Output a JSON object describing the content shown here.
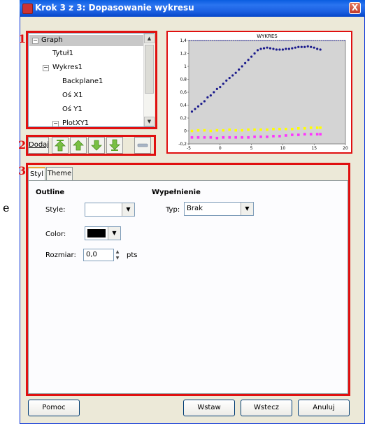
{
  "window": {
    "title": "Krok 3 z 3: Dopasowanie wykresu",
    "close": "X"
  },
  "callouts": [
    "1",
    "2",
    "3"
  ],
  "left_margin_text": "e",
  "tree": {
    "items": [
      {
        "label": "Graph",
        "expander": "−"
      },
      {
        "label": "Tytuł1"
      },
      {
        "label": "Wykres1",
        "expander": "−"
      },
      {
        "label": "Backplane1"
      },
      {
        "label": "Oś X1"
      },
      {
        "label": "Oś Y1"
      },
      {
        "label": "PlotXY1",
        "expander": "−"
      }
    ]
  },
  "toolbar": {
    "add_label": "Dodaj"
  },
  "tabs": [
    {
      "label": "Styl"
    },
    {
      "label": "Theme"
    }
  ],
  "outline": {
    "heading": "Outline",
    "style_label": "Style:",
    "color_label": "Color:",
    "size_label": "Rozmiar:",
    "size_value": "0,0",
    "size_unit": "pts",
    "color_value": "#000000"
  },
  "fill": {
    "heading": "Wypełnienie",
    "type_label": "Typ:",
    "type_value": "Brak"
  },
  "buttons": {
    "help": "Pomoc",
    "insert": "Wstaw",
    "back": "Wstecz",
    "cancel": "Anuluj"
  },
  "chart_data": {
    "type": "scatter",
    "title": "WYKRES",
    "xlim": [
      -5,
      20
    ],
    "ylim": [
      -0.2,
      1.4
    ],
    "x_ticks": [
      "-5",
      "0",
      "5",
      "10",
      "15",
      "20"
    ],
    "y_ticks": [
      "-0,2",
      "0",
      "0,2",
      "0,4",
      "0,6",
      "0,8",
      "1",
      "1,2",
      "1,4"
    ],
    "reference_line": 1.4,
    "series": [
      {
        "color": "#1a1a8c",
        "x": [
          -4.5,
          -4,
          -3.5,
          -3,
          -2.5,
          -2,
          -1.5,
          -1,
          -0.5,
          0,
          0.5,
          1,
          1.5,
          2,
          2.5,
          3,
          3.5,
          4,
          4.5,
          5,
          5.5,
          6,
          6.5,
          7,
          7.5,
          8,
          8.5,
          9,
          9.5,
          10,
          10.5,
          11,
          11.5,
          12,
          12.5,
          13,
          13.5,
          14,
          14.5,
          15,
          15.5,
          16
        ],
        "values": [
          0.3,
          0.34,
          0.38,
          0.42,
          0.46,
          0.52,
          0.55,
          0.6,
          0.65,
          0.68,
          0.73,
          0.78,
          0.82,
          0.86,
          0.9,
          0.95,
          1.0,
          1.05,
          1.1,
          1.15,
          1.2,
          1.25,
          1.27,
          1.28,
          1.29,
          1.28,
          1.27,
          1.26,
          1.26,
          1.26,
          1.27,
          1.27,
          1.28,
          1.29,
          1.3,
          1.3,
          1.3,
          1.31,
          1.3,
          1.29,
          1.27,
          1.26
        ]
      },
      {
        "color": "#ffff00",
        "x": [
          -4.5,
          -3.5,
          -2.5,
          -1.5,
          -0.5,
          0.5,
          1.5,
          2.5,
          3.5,
          4.5,
          5.5,
          6.5,
          7.5,
          8.5,
          9.5,
          10.5,
          11.5,
          12.5,
          13.5,
          14.5,
          15.5,
          16
        ],
        "values": [
          0.0,
          0.01,
          0.01,
          0.0,
          0.01,
          0.01,
          0.02,
          0.01,
          0.01,
          0.02,
          0.02,
          0.02,
          0.02,
          0.03,
          0.03,
          0.03,
          0.03,
          0.04,
          0.04,
          0.05,
          0.05,
          0.05
        ]
      },
      {
        "color": "#ff33ff",
        "x": [
          -4.5,
          -3.5,
          -2.5,
          -1.5,
          -0.5,
          0.5,
          1.5,
          2.5,
          3.5,
          4.5,
          5.5,
          6.5,
          7.5,
          8.5,
          9.5,
          10.5,
          11.5,
          12.5,
          13.5,
          14.5,
          15.5,
          16
        ],
        "values": [
          -0.1,
          -0.1,
          -0.1,
          -0.1,
          -0.11,
          -0.1,
          -0.1,
          -0.1,
          -0.1,
          -0.1,
          -0.09,
          -0.09,
          -0.09,
          -0.08,
          -0.08,
          -0.07,
          -0.06,
          -0.06,
          -0.05,
          -0.05,
          -0.05,
          -0.05
        ]
      }
    ]
  }
}
